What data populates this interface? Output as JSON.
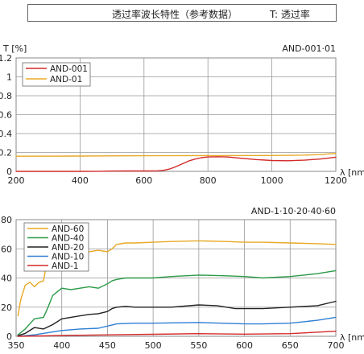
{
  "header": {
    "title": "透过率波长特性（参考数据）",
    "note": "T:  透过率"
  },
  "chart_data": [
    {
      "type": "line",
      "title": "AND-001·01",
      "ylabel": "T [%]",
      "xlabel": "λ [nm]",
      "xlim": [
        200,
        1200
      ],
      "ylim": [
        0,
        1.2
      ],
      "xticks": [
        200,
        400,
        600,
        800,
        1000,
        1200
      ],
      "yticks": [
        0,
        0.2,
        0.4,
        0.6,
        0.8,
        1.0,
        1.2
      ],
      "ytick_labels": [
        "0",
        "0.2",
        "0.4",
        "0.6",
        "0.8",
        "1",
        "1.2"
      ],
      "grid": true,
      "legend": "top-left",
      "series": [
        {
          "name": "AND-001",
          "color": "#d42a2a",
          "x": [
            200,
            400,
            450,
            500,
            550,
            600,
            640,
            660,
            680,
            700,
            720,
            740,
            760,
            780,
            800,
            830,
            860,
            900,
            950,
            1000,
            1050,
            1100,
            1150,
            1200
          ],
          "y": [
            0,
            0,
            0.001,
            0.003,
            0.004,
            0.004,
            0.005,
            0.01,
            0.025,
            0.05,
            0.08,
            0.11,
            0.13,
            0.145,
            0.152,
            0.155,
            0.152,
            0.14,
            0.125,
            0.115,
            0.112,
            0.118,
            0.13,
            0.15
          ]
        },
        {
          "name": "AND-01",
          "color": "#e8a824",
          "x": [
            200,
            400,
            600,
            800,
            1000,
            1100,
            1150,
            1200
          ],
          "y": [
            0.16,
            0.162,
            0.165,
            0.167,
            0.168,
            0.172,
            0.178,
            0.19
          ]
        }
      ]
    },
    {
      "type": "line",
      "title": "AND-1·10·20·40·60",
      "ylabel": "",
      "xlabel": "λ [nm]",
      "xlim": [
        350,
        700
      ],
      "ylim": [
        0,
        80
      ],
      "xticks": [
        350,
        400,
        450,
        500,
        550,
        600,
        650,
        700
      ],
      "yticks": [
        0,
        20,
        40,
        60,
        80
      ],
      "ytick_labels": [
        "0",
        "20",
        "40",
        "60",
        "80"
      ],
      "grid": true,
      "legend": "top-left",
      "series": [
        {
          "name": "AND-60",
          "color": "#e8a824",
          "x": [
            352,
            355,
            360,
            365,
            370,
            375,
            380,
            385,
            388,
            392,
            400,
            410,
            420,
            430,
            440,
            450,
            455,
            460,
            470,
            480,
            500,
            520,
            550,
            580,
            600,
            620,
            650,
            680,
            700
          ],
          "y": [
            14,
            25,
            35,
            37,
            34,
            37,
            38,
            55,
            62,
            58,
            60,
            57,
            57,
            58,
            59,
            58,
            60,
            63,
            64,
            64,
            64.5,
            65,
            65.5,
            65,
            64.5,
            64.5,
            64,
            63.5,
            63
          ]
        },
        {
          "name": "AND-40",
          "color": "#2b9a48",
          "x": [
            352,
            360,
            370,
            380,
            385,
            390,
            400,
            410,
            420,
            430,
            440,
            450,
            455,
            460,
            470,
            500,
            520,
            550,
            580,
            600,
            620,
            650,
            680,
            700
          ],
          "y": [
            1,
            5,
            12,
            13,
            20,
            28,
            33,
            32,
            33,
            34,
            33,
            36,
            38,
            39,
            40,
            40,
            41,
            42,
            41.5,
            41,
            40,
            41,
            43,
            45
          ]
        },
        {
          "name": "AND-20",
          "color": "#222222",
          "x": [
            352,
            360,
            370,
            380,
            390,
            400,
            410,
            420,
            430,
            440,
            450,
            455,
            460,
            470,
            480,
            500,
            520,
            550,
            570,
            590,
            600,
            620,
            650,
            680,
            700
          ],
          "y": [
            0.5,
            2,
            6,
            5,
            8,
            12,
            13,
            14,
            15,
            15.5,
            17,
            19,
            20,
            20.5,
            20,
            20,
            20,
            21.5,
            21,
            19,
            19,
            19,
            20,
            21,
            24
          ]
        },
        {
          "name": "AND-10",
          "color": "#2f7fd4",
          "x": [
            352,
            370,
            390,
            400,
            420,
            440,
            450,
            460,
            480,
            500,
            550,
            600,
            620,
            650,
            680,
            700
          ],
          "y": [
            0,
            1,
            3,
            4,
            5,
            5.5,
            7,
            8.5,
            9,
            9,
            9.5,
            8.5,
            8.5,
            9,
            11,
            13
          ]
        },
        {
          "name": "AND-1",
          "color": "#d42a2a",
          "x": [
            352,
            380,
            400,
            450,
            500,
            550,
            600,
            650,
            700
          ],
          "y": [
            0,
            0.3,
            0.6,
            1,
            1.4,
            1.8,
            1.5,
            1.8,
            3.5
          ]
        }
      ]
    }
  ]
}
